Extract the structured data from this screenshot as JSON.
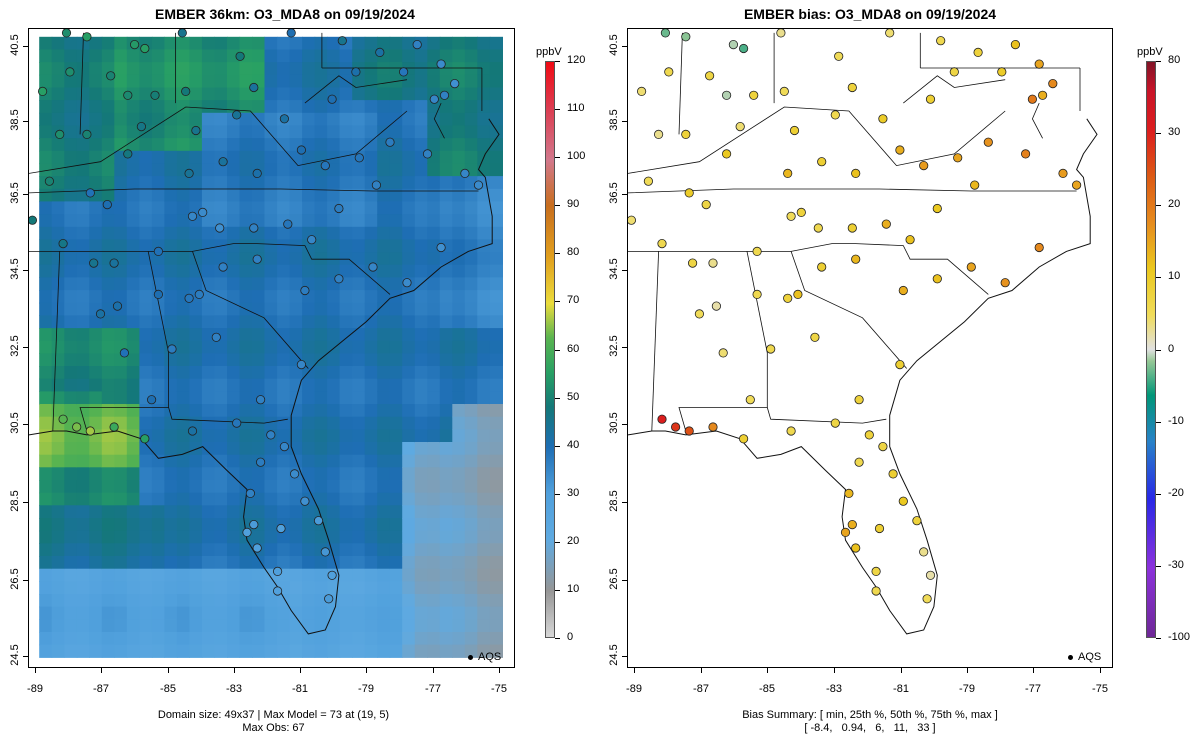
{
  "left_panel": {
    "title": "EMBER 36km: O3_MDA8 on 09/19/2024",
    "y_ticks": [
      "40.5",
      "38.5",
      "36.5",
      "34.5",
      "32.5",
      "30.5",
      "28.5",
      "26.5",
      "24.5"
    ],
    "x_ticks": [
      "-89",
      "-87",
      "-85",
      "-83",
      "-81",
      "-79",
      "-77",
      "-75"
    ],
    "legend_label": "AQS",
    "colorbar_unit": "ppbV",
    "colorbar_ticks": [
      "120",
      "110",
      "100",
      "90",
      "80",
      "70",
      "60",
      "50",
      "40",
      "30",
      "20",
      "10",
      "0"
    ],
    "footer_line1": "Domain size: 49x37 | Max Model = 73 at (19, 5)",
    "footer_line2": "Max Obs: 67"
  },
  "right_panel": {
    "title": "EMBER bias: O3_MDA8 on 09/19/2024",
    "y_ticks": [
      "40.5",
      "38.5",
      "36.5",
      "34.5",
      "32.5",
      "30.5",
      "28.5",
      "26.5",
      "24.5"
    ],
    "x_ticks": [
      "-89",
      "-87",
      "-85",
      "-83",
      "-81",
      "-79",
      "-77",
      "-75"
    ],
    "legend_label": "AQS",
    "colorbar_unit": "ppbV",
    "colorbar_ticks": [
      "80",
      "30",
      "20",
      "10",
      "0",
      "-10",
      "-20",
      "-30",
      "-100"
    ],
    "footer_line1": "Bias Summary: [ min, 25th %, 50th %, 75th %, max ]",
    "footer_line2": "[ -8.4,   0.94,   6,   11,   33 ]"
  },
  "map_data": {
    "lon_range": [
      -89.1,
      -74.8
    ],
    "lat_range": [
      24.3,
      40.7
    ],
    "conc_scale": [
      0,
      120
    ],
    "bias_summary": {
      "min": -8.4,
      "p25": 0.94,
      "p50": 6,
      "p75": 11,
      "max": 33
    },
    "max_model": 73,
    "max_obs": 67,
    "sites": [
      {
        "lon": -88.0,
        "lat": 40.6,
        "obs": 52,
        "bias": -3
      },
      {
        "lon": -87.4,
        "lat": 40.5,
        "obs": 55,
        "bias": -2
      },
      {
        "lon": -86.0,
        "lat": 40.3,
        "obs": 54,
        "bias": -1
      },
      {
        "lon": -85.7,
        "lat": 40.2,
        "obs": 55,
        "bias": -4
      },
      {
        "lon": -84.6,
        "lat": 40.6,
        "obs": 45,
        "bias": 3
      },
      {
        "lon": -82.9,
        "lat": 40.0,
        "obs": 48,
        "bias": 5
      },
      {
        "lon": -81.4,
        "lat": 40.6,
        "obs": 40,
        "bias": 4
      },
      {
        "lon": -79.9,
        "lat": 40.4,
        "obs": 45,
        "bias": 6
      },
      {
        "lon": -78.8,
        "lat": 40.1,
        "obs": 42,
        "bias": 8
      },
      {
        "lon": -77.7,
        "lat": 40.3,
        "obs": 36,
        "bias": 12
      },
      {
        "lon": -77.0,
        "lat": 39.8,
        "obs": 34,
        "bias": 15
      },
      {
        "lon": -76.6,
        "lat": 39.3,
        "obs": 33,
        "bias": 18
      },
      {
        "lon": -77.2,
        "lat": 38.9,
        "obs": 35,
        "bias": 20
      },
      {
        "lon": -76.9,
        "lat": 39.0,
        "obs": 36,
        "bias": 14
      },
      {
        "lon": -78.1,
        "lat": 39.6,
        "obs": 38,
        "bias": 10
      },
      {
        "lon": -88.7,
        "lat": 39.1,
        "obs": 55,
        "bias": 4
      },
      {
        "lon": -87.9,
        "lat": 39.6,
        "obs": 52,
        "bias": 6
      },
      {
        "lon": -86.7,
        "lat": 39.5,
        "obs": 50,
        "bias": 7
      },
      {
        "lon": -86.2,
        "lat": 39.0,
        "obs": 51,
        "bias": -1
      },
      {
        "lon": -85.4,
        "lat": 39.0,
        "obs": 49,
        "bias": 8
      },
      {
        "lon": -84.5,
        "lat": 39.1,
        "obs": 48,
        "bias": 5
      },
      {
        "lon": -84.2,
        "lat": 38.1,
        "obs": 45,
        "bias": 9
      },
      {
        "lon": -83.0,
        "lat": 38.5,
        "obs": 44,
        "bias": 6
      },
      {
        "lon": -82.5,
        "lat": 39.2,
        "obs": 43,
        "bias": 8
      },
      {
        "lon": -81.6,
        "lat": 38.4,
        "obs": 42,
        "bias": 10
      },
      {
        "lon": -80.2,
        "lat": 38.9,
        "obs": 40,
        "bias": 9
      },
      {
        "lon": -79.5,
        "lat": 39.6,
        "obs": 41,
        "bias": 7
      },
      {
        "lon": -88.2,
        "lat": 38.0,
        "obs": 52,
        "bias": 3
      },
      {
        "lon": -87.4,
        "lat": 38.0,
        "obs": 50,
        "bias": 8
      },
      {
        "lon": -86.2,
        "lat": 37.5,
        "obs": 47,
        "bias": 11
      },
      {
        "lon": -85.8,
        "lat": 38.2,
        "obs": 46,
        "bias": 4
      },
      {
        "lon": -84.4,
        "lat": 37.0,
        "obs": 44,
        "bias": 13
      },
      {
        "lon": -83.4,
        "lat": 37.3,
        "obs": 43,
        "bias": 9
      },
      {
        "lon": -82.4,
        "lat": 37.0,
        "obs": 41,
        "bias": 12
      },
      {
        "lon": -81.1,
        "lat": 37.6,
        "obs": 40,
        "bias": 14
      },
      {
        "lon": -80.4,
        "lat": 37.2,
        "obs": 38,
        "bias": 16
      },
      {
        "lon": -79.4,
        "lat": 37.4,
        "obs": 38,
        "bias": 15
      },
      {
        "lon": -78.5,
        "lat": 37.8,
        "obs": 37,
        "bias": 17
      },
      {
        "lon": -77.4,
        "lat": 37.5,
        "obs": 36,
        "bias": 19
      },
      {
        "lon": -76.3,
        "lat": 37.0,
        "obs": 35,
        "bias": 16
      },
      {
        "lon": -75.9,
        "lat": 36.7,
        "obs": 34,
        "bias": 15
      },
      {
        "lon": -78.9,
        "lat": 36.7,
        "obs": 36,
        "bias": 13
      },
      {
        "lon": -80.0,
        "lat": 36.1,
        "obs": 37,
        "bias": 11
      },
      {
        "lon": -80.8,
        "lat": 35.3,
        "obs": 35,
        "bias": 12
      },
      {
        "lon": -81.5,
        "lat": 35.7,
        "obs": 38,
        "bias": 14
      },
      {
        "lon": -82.5,
        "lat": 35.6,
        "obs": 36,
        "bias": 9
      },
      {
        "lon": -83.5,
        "lat": 35.6,
        "obs": 33,
        "bias": 6
      },
      {
        "lon": -84.0,
        "lat": 36.0,
        "obs": 34,
        "bias": 8
      },
      {
        "lon": -84.3,
        "lat": 35.9,
        "obs": 35,
        "bias": 5
      },
      {
        "lon": -85.3,
        "lat": 35.0,
        "obs": 39,
        "bias": 6
      },
      {
        "lon": -86.8,
        "lat": 36.2,
        "obs": 40,
        "bias": 7
      },
      {
        "lon": -87.3,
        "lat": 36.5,
        "obs": 39,
        "bias": 10
      },
      {
        "lon": -88.5,
        "lat": 36.8,
        "obs": 50,
        "bias": 5
      },
      {
        "lon": -89.0,
        "lat": 35.8,
        "obs": 48,
        "bias": 4
      },
      {
        "lon": -88.1,
        "lat": 35.2,
        "obs": 46,
        "bias": 6
      },
      {
        "lon": -87.2,
        "lat": 34.7,
        "obs": 45,
        "bias": 7
      },
      {
        "lon": -86.6,
        "lat": 34.7,
        "obs": 43,
        "bias": 3
      },
      {
        "lon": -86.5,
        "lat": 33.6,
        "obs": 41,
        "bias": 2
      },
      {
        "lon": -87.0,
        "lat": 33.4,
        "obs": 42,
        "bias": 5
      },
      {
        "lon": -85.3,
        "lat": 33.9,
        "obs": 40,
        "bias": 6
      },
      {
        "lon": -84.4,
        "lat": 33.8,
        "obs": 38,
        "bias": 8
      },
      {
        "lon": -84.1,
        "lat": 33.9,
        "obs": 37,
        "bias": 12
      },
      {
        "lon": -83.4,
        "lat": 34.6,
        "obs": 36,
        "bias": 9
      },
      {
        "lon": -82.4,
        "lat": 34.8,
        "obs": 36,
        "bias": 13
      },
      {
        "lon": -81.0,
        "lat": 34.0,
        "obs": 37,
        "bias": 14
      },
      {
        "lon": -80.0,
        "lat": 34.3,
        "obs": 36,
        "bias": 12
      },
      {
        "lon": -79.0,
        "lat": 34.6,
        "obs": 35,
        "bias": 15
      },
      {
        "lon": -78.0,
        "lat": 34.2,
        "obs": 34,
        "bias": 17
      },
      {
        "lon": -77.0,
        "lat": 35.1,
        "obs": 33,
        "bias": 18
      },
      {
        "lon": -81.1,
        "lat": 32.1,
        "obs": 35,
        "bias": 9
      },
      {
        "lon": -83.6,
        "lat": 32.8,
        "obs": 36,
        "bias": 7
      },
      {
        "lon": -84.9,
        "lat": 32.5,
        "obs": 37,
        "bias": 6
      },
      {
        "lon": -86.3,
        "lat": 32.4,
        "obs": 39,
        "bias": 4
      },
      {
        "lon": -85.5,
        "lat": 31.2,
        "obs": 40,
        "bias": 5
      },
      {
        "lon": -82.3,
        "lat": 31.2,
        "obs": 36,
        "bias": 8
      },
      {
        "lon": -88.1,
        "lat": 30.7,
        "obs": 62,
        "bias": 33
      },
      {
        "lon": -87.7,
        "lat": 30.5,
        "obs": 64,
        "bias": 28
      },
      {
        "lon": -87.3,
        "lat": 30.4,
        "obs": 66,
        "bias": 25
      },
      {
        "lon": -86.6,
        "lat": 30.5,
        "obs": 58,
        "bias": 18
      },
      {
        "lon": -85.7,
        "lat": 30.2,
        "obs": 55,
        "bias": 9
      },
      {
        "lon": -84.3,
        "lat": 30.4,
        "obs": 42,
        "bias": 6
      },
      {
        "lon": -83.0,
        "lat": 30.6,
        "obs": 38,
        "bias": 7
      },
      {
        "lon": -82.0,
        "lat": 30.3,
        "obs": 36,
        "bias": 8
      },
      {
        "lon": -81.6,
        "lat": 30.0,
        "obs": 35,
        "bias": 7
      },
      {
        "lon": -82.3,
        "lat": 29.6,
        "obs": 37,
        "bias": 6
      },
      {
        "lon": -81.3,
        "lat": 29.3,
        "obs": 34,
        "bias": 9
      },
      {
        "lon": -81.0,
        "lat": 28.6,
        "obs": 33,
        "bias": 11
      },
      {
        "lon": -82.6,
        "lat": 28.8,
        "obs": 36,
        "bias": 13
      },
      {
        "lon": -82.5,
        "lat": 28.0,
        "obs": 31,
        "bias": 14
      },
      {
        "lon": -82.7,
        "lat": 27.8,
        "obs": 30,
        "bias": 15
      },
      {
        "lon": -82.4,
        "lat": 27.4,
        "obs": 30,
        "bias": 12
      },
      {
        "lon": -81.7,
        "lat": 27.9,
        "obs": 30,
        "bias": 9
      },
      {
        "lon": -80.6,
        "lat": 28.1,
        "obs": 31,
        "bias": 8
      },
      {
        "lon": -80.4,
        "lat": 27.3,
        "obs": 32,
        "bias": 3
      },
      {
        "lon": -80.2,
        "lat": 26.7,
        "obs": 30,
        "bias": 2
      },
      {
        "lon": -80.3,
        "lat": 26.1,
        "obs": 31,
        "bias": 5
      },
      {
        "lon": -81.8,
        "lat": 26.3,
        "obs": 29,
        "bias": 6
      },
      {
        "lon": -81.8,
        "lat": 26.8,
        "obs": 30,
        "bias": 7
      }
    ]
  }
}
